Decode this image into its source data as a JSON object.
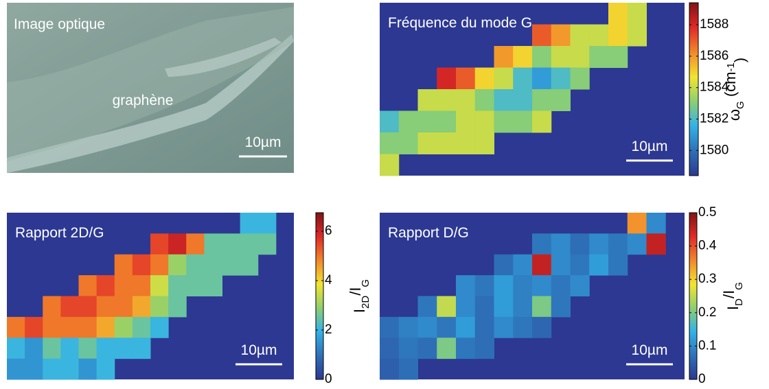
{
  "optical": {
    "title": "Image optique",
    "label": "graphène",
    "scale_bar": "10µm"
  },
  "chart_data": [
    {
      "type": "heatmap",
      "title": "Fréquence du mode G",
      "scale_bar": "10µm",
      "colorbar_label": {
        "main": "ω",
        "sub": "G",
        "rest": " (cm",
        "sup": "-1",
        "end": ")"
      },
      "ylim": [
        1578.4,
        1589.4
      ],
      "yticks": [
        1580,
        1582,
        1584,
        1586,
        1588
      ],
      "matrix": [
        [
          null,
          null,
          null,
          null,
          null,
          null,
          null,
          null,
          null,
          null,
          null,
          null,
          1585,
          1584,
          null,
          null
        ],
        [
          null,
          null,
          null,
          null,
          null,
          null,
          null,
          null,
          1587,
          1586,
          1584,
          1584,
          1585,
          1584,
          null,
          null
        ],
        [
          null,
          null,
          null,
          null,
          null,
          null,
          1586,
          1585,
          1583,
          1584,
          1584,
          1583,
          1583,
          null,
          null,
          null
        ],
        [
          null,
          null,
          null,
          1588,
          1587,
          1585,
          1584,
          1582,
          1581,
          1582,
          1583,
          null,
          null,
          null,
          null,
          null
        ],
        [
          null,
          null,
          1584,
          1584,
          1584,
          1583,
          1582,
          1582,
          1583,
          1583,
          null,
          null,
          null,
          null,
          null,
          null
        ],
        [
          1582,
          1583,
          1583,
          1583,
          1584,
          1584,
          1583,
          1583,
          1584,
          null,
          null,
          null,
          null,
          null,
          null,
          null
        ],
        [
          1583,
          1583,
          1584,
          1584,
          1584,
          1584,
          null,
          null,
          null,
          null,
          null,
          null,
          null,
          null,
          null,
          null
        ],
        [
          1584,
          null,
          null,
          null,
          null,
          null,
          null,
          null,
          null,
          null,
          null,
          null,
          null,
          null,
          null,
          null
        ]
      ]
    },
    {
      "type": "heatmap",
      "title": "Rapport 2D/G",
      "scale_bar": "10µm",
      "colorbar_label": {
        "main": "I",
        "sub": "2D",
        "rest": "/I",
        "sub2": "G"
      },
      "ylim": [
        0,
        6.75
      ],
      "yticks": [
        0,
        2,
        4,
        6
      ],
      "matrix": [
        [
          null,
          null,
          null,
          null,
          null,
          null,
          null,
          null,
          null,
          null,
          null,
          null,
          null,
          2,
          2,
          null
        ],
        [
          null,
          null,
          null,
          null,
          null,
          null,
          null,
          null,
          5.5,
          6,
          5,
          2.5,
          2.5,
          2.5,
          2.5,
          null
        ],
        [
          null,
          null,
          null,
          null,
          null,
          null,
          5,
          5.5,
          5,
          3,
          2.5,
          2.5,
          2.5,
          2.5,
          null,
          null
        ],
        [
          null,
          null,
          null,
          null,
          5,
          5.5,
          5,
          5,
          3.5,
          2.5,
          2.5,
          2.5,
          null,
          null,
          null,
          null
        ],
        [
          null,
          null,
          5,
          5.5,
          5.5,
          5,
          5,
          4.5,
          3,
          2.5,
          null,
          null,
          null,
          null,
          null,
          null
        ],
        [
          5,
          5.5,
          5,
          5,
          5,
          4.5,
          3,
          2.5,
          2,
          null,
          null,
          null,
          null,
          null,
          null,
          null
        ],
        [
          2,
          1.5,
          2.5,
          2,
          2.5,
          2,
          2,
          2,
          null,
          null,
          null,
          null,
          null,
          null,
          null,
          null
        ],
        [
          1.5,
          1.5,
          2,
          2,
          1.5,
          2,
          null,
          null,
          null,
          null,
          null,
          null,
          null,
          null,
          null,
          null
        ]
      ]
    },
    {
      "type": "heatmap",
      "title": "Rapport D/G",
      "scale_bar": "10µm",
      "colorbar_label": {
        "main": "I",
        "sub": "D",
        "rest": "/I",
        "sub2": "G"
      },
      "ylim": [
        0,
        0.5
      ],
      "yticks": [
        0,
        0.1,
        0.2,
        0.3,
        0.4,
        0.5
      ],
      "matrix": [
        [
          null,
          null,
          null,
          null,
          null,
          null,
          null,
          null,
          null,
          null,
          null,
          null,
          null,
          0.35,
          0.1,
          null
        ],
        [
          null,
          null,
          null,
          null,
          null,
          null,
          null,
          null,
          0.08,
          0.1,
          0.07,
          0.1,
          0.08,
          0.1,
          0.45,
          null
        ],
        [
          null,
          null,
          null,
          null,
          null,
          null,
          0.07,
          0.1,
          0.45,
          0.1,
          0.08,
          0.12,
          0.08,
          null,
          null,
          null
        ],
        [
          null,
          null,
          null,
          null,
          0.1,
          0.08,
          0.12,
          0.09,
          0.1,
          0.08,
          0.1,
          null,
          null,
          null,
          null,
          null
        ],
        [
          null,
          null,
          0.08,
          0.25,
          0.1,
          0.07,
          0.12,
          0.09,
          0.2,
          0.08,
          null,
          null,
          null,
          null,
          null,
          null
        ],
        [
          0.07,
          0.09,
          0.1,
          0.08,
          0.12,
          0.07,
          0.1,
          0.08,
          0.06,
          null,
          null,
          null,
          null,
          null,
          null,
          null
        ],
        [
          0.06,
          0.08,
          0.07,
          0.2,
          0.08,
          0.07,
          null,
          null,
          null,
          null,
          null,
          null,
          null,
          null,
          null,
          null
        ],
        [
          0.05,
          0.07,
          null,
          null,
          null,
          null,
          null,
          null,
          null,
          null,
          null,
          null,
          null,
          null,
          null,
          null
        ]
      ]
    }
  ]
}
